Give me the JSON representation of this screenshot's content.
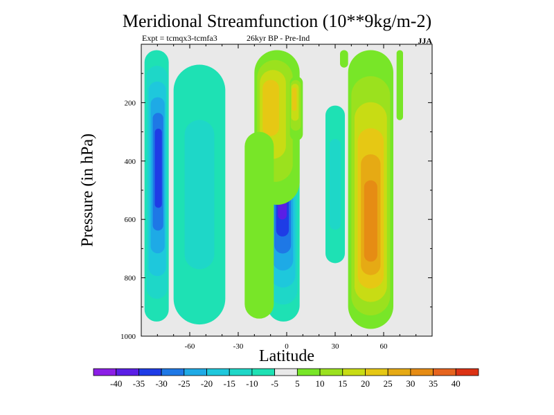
{
  "title": "Meridional Streamfunction (10**9kg/m-2)",
  "subtitle_left": "Expt = tcmqx3-tcmfa3",
  "subtitle_mid": "26kyr BP - Pre-Ind",
  "season": "JJA",
  "colors": {
    "background_fill": "#e9e9e9",
    "levels": [
      "#8c1ee6",
      "#5a1ee6",
      "#1e3ce6",
      "#1e78e6",
      "#1eaae6",
      "#1ec8dc",
      "#1ed7c8",
      "#1ee1b4",
      "#e9e9e9",
      "#78e628",
      "#9be11e",
      "#c8dc14",
      "#e6c814",
      "#e6aa14",
      "#e68c14",
      "#e6641e",
      "#dc3214"
    ]
  },
  "chart_data": {
    "type": "heatmap",
    "title": "Meridional Streamfunction (10**9kg/m-2)",
    "xlabel": "Latitude",
    "ylabel": "Pressure (in hPa)",
    "xlim": [
      -90,
      90
    ],
    "ylim": [
      0,
      1000
    ],
    "y_inverted": true,
    "grid": false,
    "x_ticks": [
      -60,
      -30,
      0,
      30,
      60
    ],
    "x_tick_labels": [
      "-60",
      "-30",
      "0",
      "30",
      "60"
    ],
    "y_ticks": [
      200,
      400,
      600,
      800,
      1000
    ],
    "y_tick_labels": [
      "200",
      "400",
      "600",
      "800",
      "1000"
    ],
    "colorbar": {
      "levels": [
        -40,
        -35,
        -30,
        -25,
        -20,
        -15,
        -10,
        -5,
        5,
        10,
        15,
        20,
        25,
        30,
        35,
        40
      ],
      "labels": [
        "-40",
        "-35",
        "-30",
        "-25",
        "-20",
        "-15",
        "-10",
        "-5",
        "5",
        "10",
        "15",
        "20",
        "25",
        "30",
        "35",
        "40"
      ]
    },
    "features": [
      {
        "sign": "negative",
        "lat": [
          -88,
          -73
        ],
        "pressure": [
          20,
          950
        ],
        "peak": -30,
        "peak_lat": -79,
        "peak_pressure": 400
      },
      {
        "sign": "negative",
        "lat": [
          -70,
          -38
        ],
        "pressure": [
          70,
          960
        ],
        "peak": -10
      },
      {
        "sign": "negative",
        "lat": [
          -12,
          8
        ],
        "pressure": [
          270,
          950
        ],
        "peak": -35,
        "peak_lat": -3,
        "peak_pressure": 470
      },
      {
        "sign": "negative",
        "lat": [
          24,
          36
        ],
        "pressure": [
          210,
          750
        ],
        "peak": -10
      },
      {
        "sign": "positive",
        "lat": [
          -20,
          8
        ],
        "pressure": [
          20,
          550
        ],
        "peak": 20,
        "peak_lat": -12,
        "peak_pressure": 180
      },
      {
        "sign": "positive",
        "lat": [
          -26,
          -8
        ],
        "pressure": [
          300,
          940
        ],
        "peak": 5
      },
      {
        "sign": "positive",
        "lat": [
          2,
          10
        ],
        "pressure": [
          110,
          330
        ],
        "peak": 20,
        "peak_lat": 4,
        "peak_pressure": 170
      },
      {
        "sign": "positive",
        "lat": [
          38,
          66
        ],
        "pressure": [
          20,
          975
        ],
        "peak": 30,
        "peak_lat": 52,
        "peak_pressure": 650
      },
      {
        "sign": "positive",
        "lat": [
          33,
          38
        ],
        "pressure": [
          20,
          80
        ],
        "peak": 5
      },
      {
        "sign": "positive",
        "lat": [
          68,
          72
        ],
        "pressure": [
          20,
          260
        ],
        "peak": 5
      }
    ]
  }
}
